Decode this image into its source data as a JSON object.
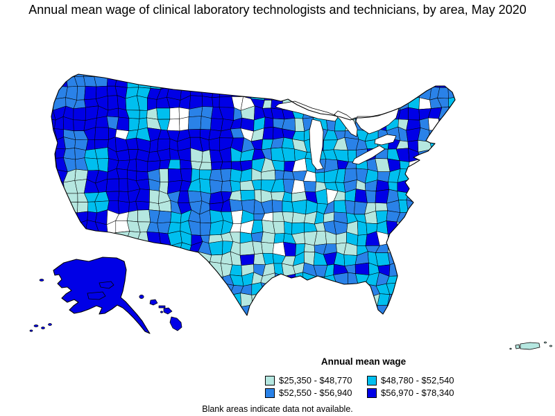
{
  "figure": {
    "title": "Annual mean wage of clinical laboratory technologists and technicians, by area, May 2020",
    "note": "Blank areas indicate data not available."
  },
  "legend": {
    "title": "Annual mean wage",
    "items": [
      {
        "label": "$25,350 - $48,770",
        "color": "#b5e7e0"
      },
      {
        "label": "$48,780 - $52,540",
        "color": "#00bfef"
      },
      {
        "label": "$52,550 - $56,940",
        "color": "#2a82e8"
      },
      {
        "label": "$56,970 - $78,340",
        "color": "#0000e6"
      }
    ]
  },
  "map": {
    "regions_shown": [
      "Contiguous United States",
      "Alaska",
      "Hawaii",
      "Puerto Rico"
    ],
    "no_data_color": "#ffffff",
    "border_color": "#000000"
  },
  "chart_data": {
    "type": "heatmap",
    "title": "Annual mean wage of clinical laboratory technologists and technicians, by area, May 2020",
    "legend_title": "Annual mean wage",
    "unit": "USD per year",
    "classes": [
      {
        "range": "$25,350 - $48,770",
        "min": 25350,
        "max": 48770,
        "color": "#b5e7e0"
      },
      {
        "range": "$48,780 - $52,540",
        "min": 48780,
        "max": 52540,
        "color": "#00bfef"
      },
      {
        "range": "$52,550 - $56,940",
        "min": 52550,
        "max": 56940,
        "color": "#2a82e8"
      },
      {
        "range": "$56,970 - $78,340",
        "min": 56970,
        "max": 78340,
        "color": "#0000e6"
      }
    ],
    "note": "Blank areas indicate data not available.",
    "regional_patterns": {
      "highest_bracket_56970_78340": [
        "Washington",
        "Oregon",
        "California coast",
        "Nevada",
        "Montana",
        "Wyoming",
        "Colorado",
        "Alaska",
        "Hawaii",
        "Minneapolis MN area",
        "Upstate New York",
        "New England (NH VT MA CT)",
        "Houston TX area",
        "Miami FL area"
      ],
      "bracket_52550_56940": [
        "West Texas",
        "Florida metros",
        "Dakotas",
        "Maine",
        "Ohio-Pennsylvania-Virginia metros",
        "New York metros"
      ],
      "bracket_48780_52540": [
        "Idaho",
        "Arizona",
        "New Mexico",
        "Kansas",
        "Oklahoma",
        "Wisconsin",
        "Iowa",
        "Missouri",
        "Illinois",
        "Indiana",
        "Southeast metros"
      ],
      "lowest_bracket_25350_48770": [
        "South and East Texas",
        "Arkansas",
        "Tennessee",
        "Kentucky",
        "Mississippi",
        "inland Southern California",
        "parts of Utah",
        "Puerto Rico"
      ]
    }
  }
}
